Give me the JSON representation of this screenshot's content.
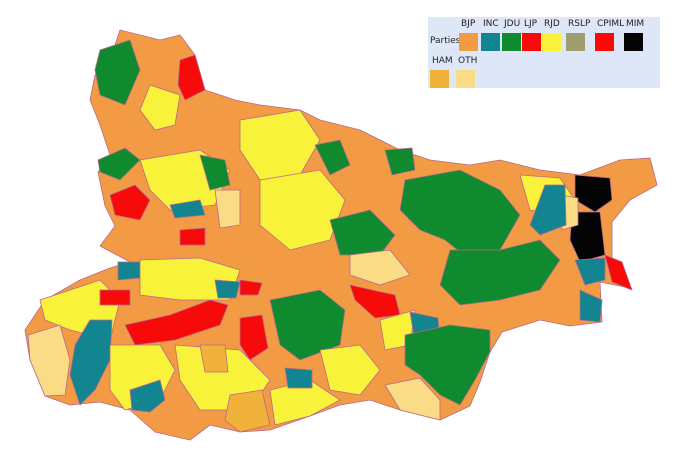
{
  "legend": {
    "title": "Parties",
    "items": [
      {
        "label": "BJP",
        "color": "#f39a45"
      },
      {
        "label": "INC",
        "color": "#138591"
      },
      {
        "label": "JDU",
        "color": "#0f8a2e"
      },
      {
        "label": "LJP",
        "color": "#f70a0a"
      },
      {
        "label": "RJD",
        "color": "#f9f23b"
      },
      {
        "label": "RSLP",
        "color": "#a09d70"
      },
      {
        "label": "CPIML",
        "color": "#fc0808"
      },
      {
        "label": "MIM",
        "color": "#050505"
      },
      {
        "label": "HAM",
        "color": "#f0b23a"
      },
      {
        "label": "OTH",
        "color": "#fbdc86"
      }
    ]
  }
}
